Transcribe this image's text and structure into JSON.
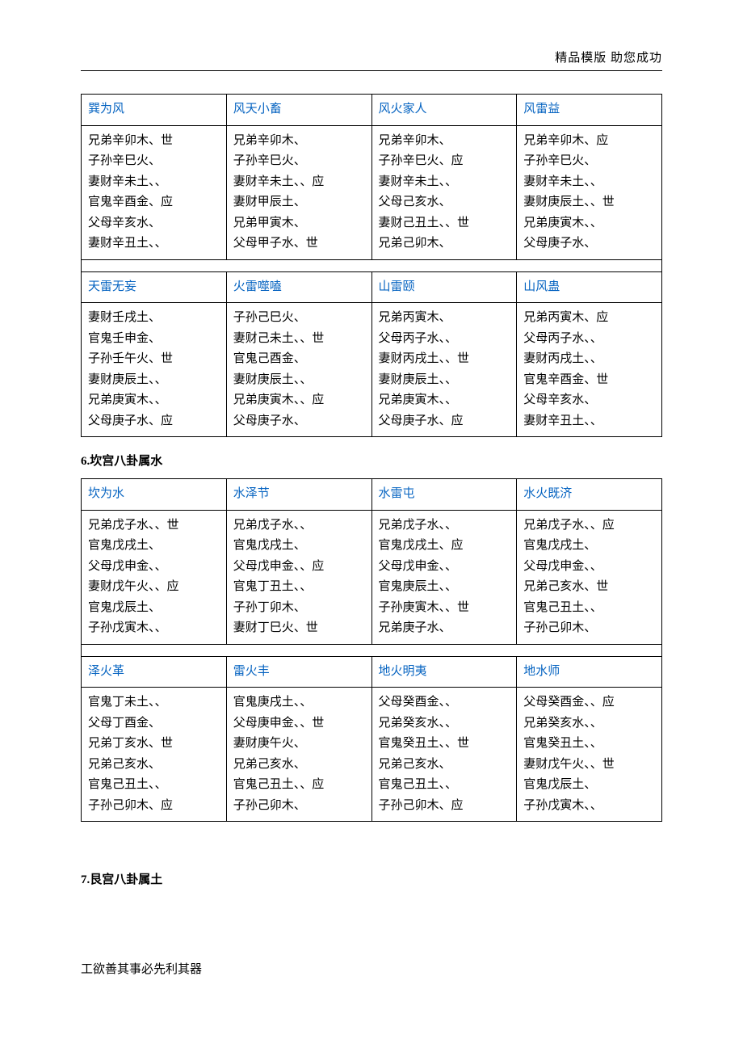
{
  "header": "精品模版  助您成功",
  "footer": "工欲善其事必先利其器",
  "section6_title": "6.坎宫八卦属水",
  "section7_title": "7.艮宫八卦属土",
  "table1": {
    "row_a_headers": [
      "巽为风",
      "风天小畜",
      "风火家人",
      "风雷益"
    ],
    "row_a_cells": [
      [
        "兄弟辛卯木、世",
        "子孙辛巳火、",
        "妻财辛未土、、",
        "官鬼辛酉金、应",
        "父母辛亥水、",
        "妻财辛丑土、、"
      ],
      [
        "兄弟辛卯木、",
        "子孙辛巳火、",
        "妻财辛未土、、应",
        "妻财甲辰土、",
        "兄弟甲寅木、",
        "父母甲子水、世"
      ],
      [
        "兄弟辛卯木、",
        "子孙辛巳火、应",
        "妻财辛未土、、",
        "父母己亥水、",
        "妻财己丑土、、世",
        "兄弟己卯木、"
      ],
      [
        "兄弟辛卯木、应",
        "子孙辛巳火、",
        "妻财辛未土、、",
        "妻财庚辰土、、世",
        "兄弟庚寅木、、",
        "父母庚子水、"
      ]
    ],
    "row_b_headers": [
      "天雷无妄",
      "火雷噬嗑",
      "山雷颐",
      "山风蛊"
    ],
    "row_b_cells": [
      [
        "妻财壬戌土、",
        "官鬼壬申金、",
        "子孙壬午火、世",
        "妻财庚辰土、、",
        "兄弟庚寅木、、",
        "父母庚子水、应"
      ],
      [
        "子孙己巳火、",
        "妻财己未土、、世",
        "官鬼己酉金、",
        "妻财庚辰土、、",
        "兄弟庚寅木、、应",
        "父母庚子水、"
      ],
      [
        "兄弟丙寅木、",
        "父母丙子水、、",
        "妻财丙戌土、、世",
        "妻财庚辰土、、",
        "兄弟庚寅木、、",
        "父母庚子水、应"
      ],
      [
        "兄弟丙寅木、应",
        "父母丙子水、、",
        "妻财丙戌土、、",
        "官鬼辛酉金、世",
        "父母辛亥水、",
        "妻财辛丑土、、"
      ]
    ]
  },
  "table2": {
    "row_a_headers": [
      "坎为水",
      "水泽节",
      "水雷屯",
      "水火既济"
    ],
    "row_a_cells": [
      [
        "兄弟戊子水、、世",
        "官鬼戊戌土、",
        "父母戊申金、、",
        "妻财戊午火、、应",
        "官鬼戊辰土、",
        "子孙戊寅木、、"
      ],
      [
        "兄弟戊子水、、",
        "官鬼戊戌土、",
        "父母戊申金、、应",
        "官鬼丁丑土、、",
        "子孙丁卯木、",
        "妻财丁巳火、世"
      ],
      [
        "兄弟戊子水、、",
        "官鬼戊戌土、应",
        "父母戊申金、、",
        "官鬼庚辰土、、",
        "子孙庚寅木、、世",
        "兄弟庚子水、"
      ],
      [
        "兄弟戊子水、、应",
        "官鬼戊戌土、",
        "父母戊申金、、",
        "兄弟己亥水、世",
        "官鬼己丑土、、",
        "子孙己卯木、"
      ]
    ],
    "row_b_headers": [
      "泽火革",
      "雷火丰",
      "地火明夷",
      "地水师"
    ],
    "row_b_cells": [
      [
        "官鬼丁未土、、",
        "父母丁酉金、",
        "兄弟丁亥水、世",
        "兄弟己亥水、",
        "官鬼己丑土、、",
        "子孙己卯木、应"
      ],
      [
        "官鬼庚戌土、、",
        "父母庚申金、、世",
        "妻财庚午火、",
        "兄弟己亥水、",
        "官鬼己丑土、、应",
        "子孙己卯木、"
      ],
      [
        "父母癸酉金、、",
        "兄弟癸亥水、、",
        "官鬼癸丑土、、世",
        "兄弟己亥水、",
        "官鬼己丑土、、",
        "子孙己卯木、应"
      ],
      [
        "父母癸酉金、、应",
        "兄弟癸亥水、、",
        "官鬼癸丑土、、",
        "妻财戊午火、、世",
        "官鬼戊辰土、",
        "子孙戊寅木、、"
      ]
    ]
  }
}
